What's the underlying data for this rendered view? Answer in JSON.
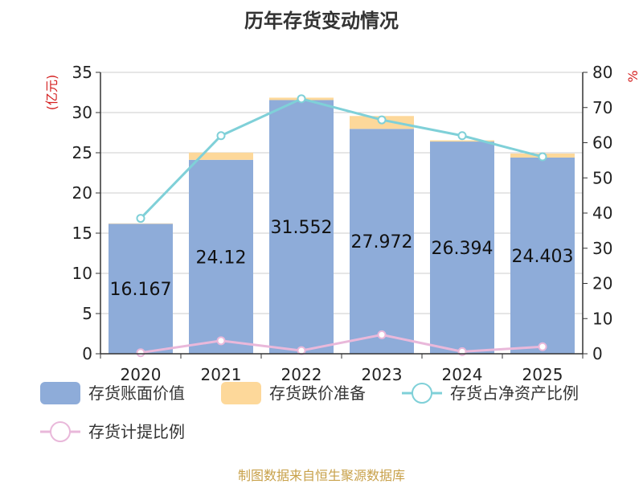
{
  "title": "历年存货变动情况",
  "footer": "制图数据来自恒生聚源数据库",
  "chart_data": {
    "type": "bar",
    "categories": [
      "2020",
      "2021",
      "2022",
      "2023",
      "2024",
      "2025"
    ],
    "left_axis": {
      "unit": "(亿元)",
      "ylim": [
        0,
        35
      ],
      "ticks": [
        0,
        5,
        10,
        15,
        20,
        25,
        30,
        35
      ]
    },
    "right_axis": {
      "unit": "%",
      "ylim": [
        0,
        80
      ],
      "ticks": [
        0,
        10,
        20,
        30,
        40,
        50,
        60,
        70,
        80
      ]
    },
    "series": [
      {
        "name": "存货账面价值",
        "type": "bar",
        "axis": "left",
        "color": "#8eacd9",
        "values": [
          16.167,
          24.12,
          31.552,
          27.972,
          26.394,
          24.403
        ],
        "labels": [
          "16.167",
          "24.12",
          "31.552",
          "27.972",
          "26.394",
          "24.403"
        ]
      },
      {
        "name": "存货跌价准备",
        "type": "bar-stacked",
        "axis": "left",
        "color": "#fdd89a",
        "values": [
          0.05,
          0.9,
          0.3,
          1.6,
          0.15,
          0.5
        ]
      },
      {
        "name": "存货占净资产比例",
        "type": "line",
        "axis": "right",
        "color": "#7fd0d8",
        "values": [
          38.5,
          62,
          72.5,
          66.5,
          62,
          56
        ]
      },
      {
        "name": "存货计提比例",
        "type": "line",
        "axis": "right",
        "color": "#e9b8da",
        "values": [
          0.3,
          3.7,
          0.9,
          5.4,
          0.6,
          2.0
        ]
      }
    ],
    "grid": true,
    "legend_position": "bottom"
  }
}
